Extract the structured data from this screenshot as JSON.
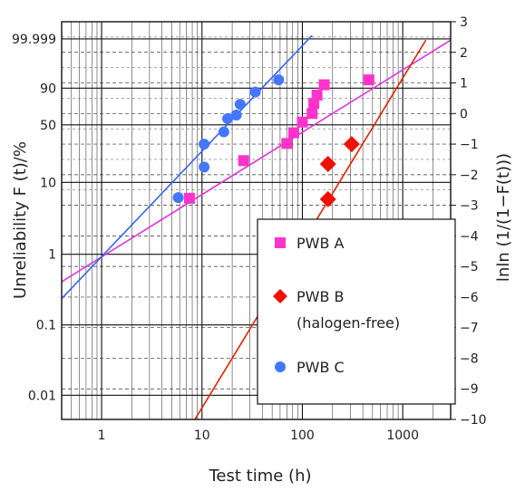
{
  "chart_data": {
    "type": "scatter",
    "xlabel": "Test time (h)",
    "ylabel_left": "Unreliability F (t)/%",
    "ylabel_right": "lnln (1/(1−F(t)))",
    "x_scale": "log",
    "xlim": [
      0.4,
      3000
    ],
    "ylim_right": [
      -10,
      3
    ],
    "grid": true,
    "legend_position": "bottom-right",
    "x_tick_labels": [
      {
        "value": 1,
        "label": "1"
      },
      {
        "value": 10,
        "label": "10"
      },
      {
        "value": 100,
        "label": "100"
      },
      {
        "value": 1000,
        "label": "1000"
      }
    ],
    "left_tick_labels": [
      {
        "lnln": 2.44,
        "label": "99.999"
      },
      {
        "lnln": 0.83,
        "label": "90"
      },
      {
        "lnln": -0.37,
        "label": "50"
      },
      {
        "lnln": -2.25,
        "label": "10"
      },
      {
        "lnln": -4.6,
        "label": "1"
      },
      {
        "lnln": -6.91,
        "label": "0.1"
      },
      {
        "lnln": -9.21,
        "label": "0.01"
      }
    ],
    "right_tick_labels": [
      "3",
      "2",
      "1",
      "0",
      "−1",
      "−2",
      "−3",
      "−4",
      "−5",
      "−6",
      "−7",
      "−8",
      "−9",
      "−10"
    ],
    "series": [
      {
        "name": "PWB A",
        "marker": "square",
        "color": "#ff33cc",
        "line_color": "#e033dd",
        "points": [
          [
            7.5,
            -2.77
          ],
          [
            26,
            -1.54
          ],
          [
            70,
            -0.98
          ],
          [
            82,
            -0.63
          ],
          [
            100,
            -0.28
          ],
          [
            125,
            0.0
          ],
          [
            130,
            0.33
          ],
          [
            140,
            0.6
          ],
          [
            165,
            0.94
          ],
          [
            460,
            1.1
          ]
        ],
        "fit": [
          [
            0.4,
            -5.5
          ],
          [
            3000,
            2.4
          ]
        ]
      },
      {
        "name": "PWB B",
        "sublabel": "(halogen-free)",
        "marker": "diamond",
        "color": "#ee1100",
        "line_color": "#dd2200",
        "points": [
          [
            180,
            -1.65
          ],
          [
            180,
            -2.8
          ],
          [
            310,
            -1.0
          ]
        ],
        "fit": [
          [
            8.5,
            -10
          ],
          [
            1700,
            2.4
          ]
        ]
      },
      {
        "name": "PWB C",
        "marker": "circle",
        "color": "#4477ff",
        "line_color": "#3366ee",
        "points": [
          [
            5.8,
            -2.75
          ],
          [
            10.5,
            -1.75
          ],
          [
            10.5,
            -1.0
          ],
          [
            16.5,
            -0.6
          ],
          [
            18,
            -0.17
          ],
          [
            22,
            -0.05
          ],
          [
            24,
            0.3
          ],
          [
            34,
            0.7
          ],
          [
            58,
            1.1
          ]
        ],
        "fit": [
          [
            0.4,
            -6.05
          ],
          [
            125,
            2.55
          ]
        ]
      }
    ]
  }
}
